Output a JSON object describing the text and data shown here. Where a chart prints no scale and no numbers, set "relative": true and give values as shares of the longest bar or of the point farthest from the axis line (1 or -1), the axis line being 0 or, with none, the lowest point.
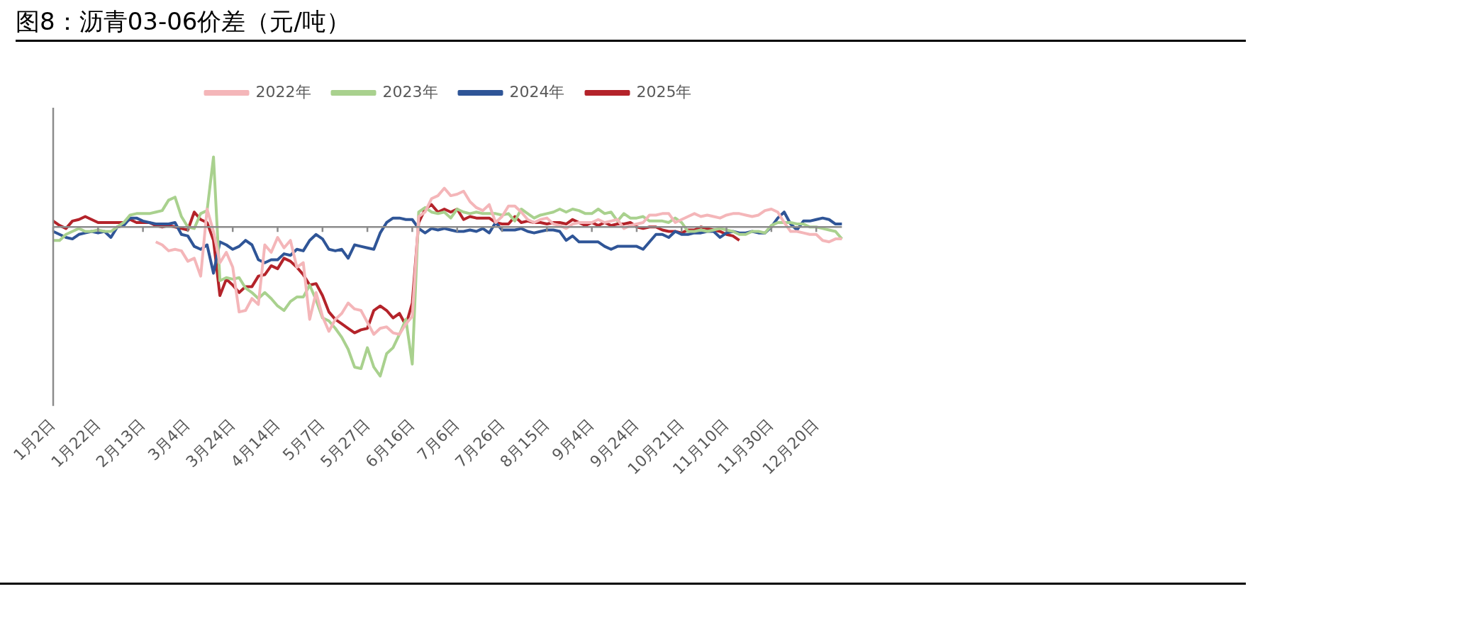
{
  "chart_data": {
    "type": "line",
    "title": "图8：沥青03-06价差（元/吨）",
    "relative": true,
    "legend": "top",
    "grid": false,
    "marker": "none",
    "line_style": "solid",
    "categories": [
      "1月2日",
      null,
      null,
      null,
      null,
      null,
      null,
      "1月22日",
      null,
      null,
      null,
      null,
      null,
      null,
      "2月13日",
      null,
      null,
      null,
      null,
      null,
      null,
      "3月4日",
      null,
      null,
      null,
      null,
      null,
      null,
      "3月24日",
      null,
      null,
      null,
      null,
      null,
      null,
      "4月14日",
      null,
      null,
      null,
      null,
      null,
      null,
      "5月7日",
      null,
      null,
      null,
      null,
      null,
      null,
      "5月27日",
      null,
      null,
      null,
      null,
      null,
      null,
      "6月16日",
      null,
      null,
      null,
      null,
      null,
      null,
      "7月6日",
      null,
      null,
      null,
      null,
      null,
      null,
      "7月26日",
      null,
      null,
      null,
      null,
      null,
      null,
      "8月15日",
      null,
      null,
      null,
      null,
      null,
      null,
      "9月4日",
      null,
      null,
      null,
      null,
      null,
      null,
      "9月24日",
      null,
      null,
      null,
      null,
      null,
      null,
      "10月21日",
      null,
      null,
      null,
      null,
      null,
      null,
      "11月10日",
      null,
      null,
      null,
      null,
      null,
      null,
      "11月30日",
      null,
      null,
      null,
      null,
      null,
      null,
      "12月20日",
      null,
      null,
      null,
      null
    ],
    "series": [
      {
        "name": "2022年",
        "color": "#f4b6b9",
        "values": [
          null,
          null,
          null,
          null,
          null,
          null,
          null,
          null,
          null,
          null,
          null,
          null,
          null,
          null,
          null,
          null,
          -0.1,
          -0.12,
          -0.16,
          -0.15,
          -0.16,
          -0.23,
          -0.21,
          -0.33,
          0.12,
          -0.03,
          -0.24,
          -0.17,
          -0.27,
          -0.57,
          -0.56,
          -0.48,
          -0.52,
          -0.12,
          -0.17,
          -0.07,
          -0.14,
          -0.09,
          -0.27,
          -0.24,
          -0.62,
          -0.44,
          -0.6,
          -0.7,
          -0.62,
          -0.58,
          -0.51,
          -0.55,
          -0.56,
          -0.64,
          -0.72,
          -0.68,
          -0.67,
          -0.71,
          -0.72,
          -0.65,
          -0.6,
          0.07,
          0.1,
          0.19,
          0.21,
          0.26,
          0.21,
          0.22,
          0.24,
          0.17,
          0.13,
          0.11,
          0.15,
          0.03,
          0.07,
          0.14,
          0.14,
          0.1,
          0.05,
          0.03,
          0.05,
          0.06,
          0.02,
          0.01,
          -0.01,
          0.02,
          0.03,
          0.03,
          0.03,
          0.05,
          0.03,
          0.04,
          0.05,
          -0.01,
          0.01,
          0.02,
          0.03,
          0.08,
          0.08,
          0.09,
          0.09,
          0.03,
          0.05,
          0.07,
          0.09,
          0.07,
          0.08,
          0.07,
          0.06,
          0.08,
          0.09,
          0.09,
          0.08,
          0.07,
          0.08,
          0.11,
          0.12,
          0.1,
          0.03,
          -0.03,
          -0.03,
          -0.04,
          -0.05,
          -0.05,
          -0.09,
          -0.1,
          -0.08,
          -0.08
        ]
      },
      {
        "name": "2023年",
        "color": "#a9d18e",
        "values": [
          -0.09,
          -0.09,
          -0.05,
          -0.03,
          -0.01,
          -0.03,
          -0.03,
          -0.02,
          -0.03,
          -0.03,
          0,
          0.03,
          0.08,
          0.09,
          0.09,
          0.09,
          0.1,
          0.11,
          0.18,
          0.2,
          0.07,
          0,
          -0.01,
          0.09,
          0.11,
          0.47,
          -0.36,
          -0.34,
          -0.35,
          -0.34,
          -0.41,
          -0.44,
          -0.48,
          -0.44,
          -0.48,
          -0.53,
          -0.56,
          -0.5,
          -0.47,
          -0.47,
          -0.39,
          -0.49,
          -0.61,
          -0.63,
          -0.68,
          -0.74,
          -0.82,
          -0.94,
          -0.95,
          -0.81,
          -0.94,
          -1,
          -0.85,
          -0.81,
          -0.72,
          -0.62,
          -0.92,
          0.1,
          0.13,
          0.1,
          0.09,
          0.1,
          0.06,
          0.12,
          0.1,
          0.09,
          0.1,
          0.09,
          0.09,
          0.09,
          0.08,
          0.09,
          0.04,
          0.12,
          0.09,
          0.06,
          0.08,
          0.09,
          0.1,
          0.12,
          0.1,
          0.12,
          0.11,
          0.09,
          0.09,
          0.12,
          0.09,
          0.1,
          0.04,
          0.09,
          0.06,
          0.06,
          0.07,
          0.04,
          0.04,
          0.04,
          0.03,
          0.06,
          0.03,
          -0.03,
          -0.03,
          -0.02,
          -0.03,
          -0.02,
          -0.01,
          -0.02,
          -0.03,
          -0.05,
          -0.05,
          -0.03,
          -0.03,
          -0.04,
          0.01,
          0.03,
          0.03,
          0.03,
          0.02,
          0.02,
          0,
          0,
          -0.01,
          -0.02,
          -0.03,
          -0.08
        ]
      },
      {
        "name": "2024年",
        "color": "#2f5597",
        "values": [
          -0.03,
          -0.05,
          -0.07,
          -0.08,
          -0.05,
          -0.04,
          -0.03,
          -0.04,
          -0.03,
          -0.07,
          0,
          0.01,
          0.06,
          0.06,
          0.04,
          0.03,
          0.02,
          0.02,
          0.02,
          0.03,
          -0.05,
          -0.06,
          -0.13,
          -0.15,
          -0.12,
          -0.31,
          -0.1,
          -0.12,
          -0.15,
          -0.13,
          -0.09,
          -0.12,
          -0.22,
          -0.24,
          -0.22,
          -0.22,
          -0.18,
          -0.19,
          -0.15,
          -0.16,
          -0.09,
          -0.05,
          -0.08,
          -0.15,
          -0.16,
          -0.15,
          -0.21,
          -0.12,
          -0.13,
          -0.14,
          -0.15,
          -0.04,
          0.03,
          0.06,
          0.06,
          0.05,
          0.05,
          -0.01,
          -0.04,
          -0.01,
          -0.02,
          -0.01,
          -0.02,
          -0.03,
          -0.03,
          -0.02,
          -0.03,
          -0.01,
          -0.04,
          0.03,
          -0.02,
          -0.02,
          -0.02,
          -0.01,
          -0.03,
          -0.04,
          -0.03,
          -0.02,
          -0.02,
          -0.03,
          -0.09,
          -0.06,
          -0.1,
          -0.1,
          -0.1,
          -0.1,
          -0.13,
          -0.15,
          -0.13,
          -0.13,
          -0.13,
          -0.13,
          -0.15,
          -0.1,
          -0.05,
          -0.05,
          -0.07,
          -0.03,
          -0.05,
          -0.05,
          -0.04,
          -0.04,
          -0.03,
          -0.03,
          -0.07,
          -0.04,
          -0.03,
          -0.04,
          -0.04,
          -0.03,
          -0.04,
          -0.04,
          0,
          0.06,
          0.1,
          0.02,
          -0.02,
          0.04,
          0.04,
          0.05,
          0.06,
          0.05,
          0.02,
          0.02
        ]
      },
      {
        "name": "2025年",
        "color": "#b4232a",
        "values": [
          0.04,
          0.01,
          -0.01,
          0.04,
          0.05,
          0.07,
          0.05,
          0.03,
          0.03,
          0.03,
          0.03,
          0.03,
          0.05,
          0.03,
          0.03,
          0.03,
          0.01,
          0,
          0.01,
          0,
          -0.01,
          -0.02,
          0.1,
          0.05,
          0.03,
          -0.09,
          -0.46,
          -0.35,
          -0.39,
          -0.44,
          -0.4,
          -0.4,
          -0.33,
          -0.32,
          -0.26,
          -0.28,
          -0.21,
          -0.23,
          -0.27,
          -0.32,
          -0.39,
          -0.38,
          -0.46,
          -0.57,
          -0.62,
          -0.65,
          -0.68,
          -0.71,
          -0.69,
          -0.68,
          -0.56,
          -0.53,
          -0.56,
          -0.61,
          -0.58,
          -0.66,
          -0.51,
          0.03,
          0.12,
          0.15,
          0.1,
          0.12,
          0.1,
          0.12,
          0.05,
          0.07,
          0.06,
          0.06,
          0.06,
          0.03,
          0.02,
          0.02,
          0.07,
          0.03,
          0.04,
          0.03,
          0.03,
          0.02,
          0.03,
          0.03,
          0.02,
          0.05,
          0.03,
          0.01,
          0.03,
          0.01,
          0.03,
          0.01,
          0.02,
          0.02,
          0.03,
          0,
          -0.01,
          0,
          0,
          -0.02,
          -0.03,
          -0.03,
          -0.04,
          -0.02,
          -0.02,
          0,
          -0.01,
          -0.02,
          -0.03,
          -0.05,
          -0.06,
          -0.09,
          null,
          null,
          null,
          null,
          null,
          null,
          null,
          null,
          null,
          null,
          null,
          null,
          null,
          null,
          null,
          null
        ]
      }
    ]
  }
}
